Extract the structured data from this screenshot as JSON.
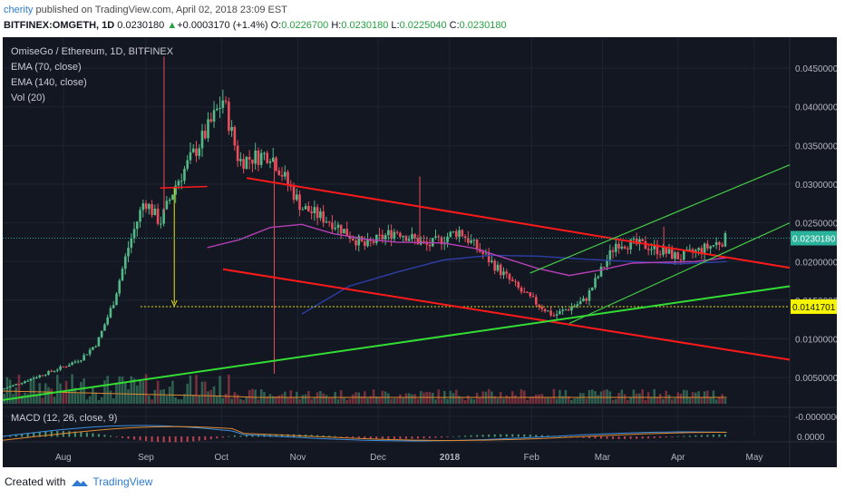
{
  "header": {
    "user": "cherity",
    "published_text": "published on TradingView.com, April 02, 2018 23:09 EST",
    "symbol": "BITFINEX:OMGETH, 1D",
    "last": "0.0230180",
    "change": "+0.0003170 (+1.4%)",
    "o_label": "O:",
    "o": "0.0226700",
    "h_label": "H:",
    "h": "0.0230180",
    "l_label": "L:",
    "l": "0.0225040",
    "c_label": "C:",
    "c": "0.0230180"
  },
  "legend": {
    "title": "OmiseGo / Ethereum, 1D, BITFINEX",
    "ema70": "EMA (70, close)",
    "ema140": "EMA (140, close)",
    "vol": "Vol (20)",
    "macd": "MACD (12, 26, close, 9)"
  },
  "footer": {
    "created_with": "Created with",
    "brand": "TradingView"
  },
  "colors": {
    "background": "#131722",
    "bull": "#53b987",
    "bear": "#eb4d5c",
    "channel": "#ff1a1a",
    "support": "#33dd33",
    "fan": "#44cc44",
    "ema70": "#b53fb5",
    "ema140": "#2e3fa8",
    "level": "#e6e600"
  },
  "chart_data": {
    "type": "candlestick",
    "title": "OmiseGo / Ethereum, 1D, BITFINEX",
    "x_ticks": [
      "Aug",
      "Sep",
      "Oct",
      "Nov",
      "Dec",
      "2018",
      "Feb",
      "Mar",
      "Apr",
      "May"
    ],
    "y_ticks": [
      "0.0450000",
      "0.0400000",
      "0.0350000",
      "0.0300000",
      "0.0250000",
      "0.0200000",
      "0.0150000",
      "0.0100000",
      "0.0050000",
      "-0.0000000"
    ],
    "ylim": [
      0.0015,
      0.049
    ],
    "last_price_label": "0.0230180",
    "marked_level_label": "0.0141701",
    "marked_level": 0.01417,
    "macd_tick": "0.0000",
    "price_path": [
      [
        0.0,
        0.0035
      ],
      [
        0.04,
        0.005
      ],
      [
        0.08,
        0.0065
      ],
      [
        0.1,
        0.0075
      ],
      [
        0.12,
        0.0095
      ],
      [
        0.14,
        0.0145
      ],
      [
        0.16,
        0.022
      ],
      [
        0.18,
        0.028
      ],
      [
        0.2,
        0.025
      ],
      [
        0.22,
        0.03
      ],
      [
        0.26,
        0.037
      ],
      [
        0.28,
        0.041
      ],
      [
        0.3,
        0.033
      ],
      [
        0.34,
        0.034
      ],
      [
        0.38,
        0.027
      ],
      [
        0.42,
        0.025
      ],
      [
        0.46,
        0.022
      ],
      [
        0.5,
        0.024
      ],
      [
        0.54,
        0.022
      ],
      [
        0.58,
        0.024
      ],
      [
        0.62,
        0.02
      ],
      [
        0.66,
        0.016
      ],
      [
        0.7,
        0.013
      ],
      [
        0.74,
        0.015
      ],
      [
        0.78,
        0.0225
      ],
      [
        0.82,
        0.022
      ],
      [
        0.86,
        0.0205
      ],
      [
        0.9,
        0.022
      ],
      [
        0.92,
        0.023
      ]
    ],
    "ema70_path": [
      [
        0.26,
        0.0218
      ],
      [
        0.3,
        0.0228
      ],
      [
        0.34,
        0.0244
      ],
      [
        0.38,
        0.0248
      ],
      [
        0.42,
        0.0236
      ],
      [
        0.46,
        0.0229
      ],
      [
        0.5,
        0.0225
      ],
      [
        0.56,
        0.0224
      ],
      [
        0.6,
        0.0217
      ],
      [
        0.64,
        0.0204
      ],
      [
        0.68,
        0.0191
      ],
      [
        0.72,
        0.0182
      ],
      [
        0.76,
        0.0189
      ],
      [
        0.8,
        0.0198
      ],
      [
        0.84,
        0.0199
      ],
      [
        0.88,
        0.02
      ],
      [
        0.92,
        0.0205
      ]
    ],
    "ema140_path": [
      [
        0.38,
        0.0132
      ],
      [
        0.44,
        0.0168
      ],
      [
        0.5,
        0.0186
      ],
      [
        0.56,
        0.0202
      ],
      [
        0.62,
        0.0208
      ],
      [
        0.68,
        0.0207
      ],
      [
        0.74,
        0.0203
      ],
      [
        0.8,
        0.02
      ],
      [
        0.86,
        0.0197
      ],
      [
        0.92,
        0.02
      ]
    ],
    "trendlines": [
      {
        "name": "channel-upper",
        "kind": "channel",
        "p1": [
          0.31,
          0.0308
        ],
        "p2": [
          1.0,
          0.0192
        ]
      },
      {
        "name": "channel-lower",
        "kind": "channel",
        "p1": [
          0.28,
          0.019
        ],
        "p2": [
          1.0,
          0.0073
        ]
      },
      {
        "name": "support-long",
        "kind": "support",
        "p1": [
          0.0,
          0.0021
        ],
        "p2": [
          1.0,
          0.0168
        ]
      },
      {
        "name": "fan-upper",
        "kind": "fan",
        "p1": [
          0.67,
          0.0185
        ],
        "p2": [
          1.0,
          0.0325
        ]
      },
      {
        "name": "fan-lower",
        "kind": "fan",
        "p1": [
          0.72,
          0.012
        ],
        "p2": [
          1.0,
          0.025
        ]
      }
    ]
  }
}
